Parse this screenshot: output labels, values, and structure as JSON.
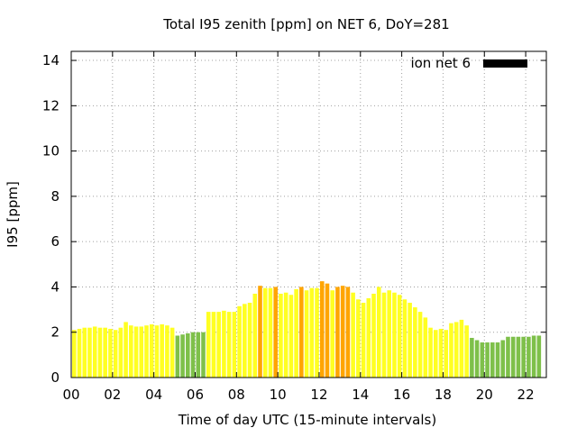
{
  "chart_data": {
    "type": "bar",
    "title": "Total I95 zenith [ppm] on NET 6, DoY=281",
    "xlabel": "Time of day UTC (15-minute intervals)",
    "ylabel": "I95 [ppm]",
    "xlim": [
      0,
      23
    ],
    "ylim": [
      0,
      14.4
    ],
    "x_ticks": [
      0,
      2,
      4,
      6,
      8,
      10,
      12,
      14,
      16,
      18,
      20,
      22
    ],
    "x_tick_labels": [
      "00",
      "02",
      "04",
      "06",
      "08",
      "10",
      "12",
      "14",
      "16",
      "18",
      "20",
      "22"
    ],
    "y_ticks": [
      0,
      2,
      4,
      6,
      8,
      10,
      12,
      14
    ],
    "y_tick_labels": [
      "0",
      "2",
      "4",
      "6",
      "8",
      "10",
      "12",
      "14"
    ],
    "grid": true,
    "legend": {
      "label": "ion net 6",
      "position": "top-right",
      "color": "#000000"
    },
    "colors": {
      "green": "#7ec04a",
      "yellow": "#ffff22",
      "orange": "#ffa500",
      "axis": "#000000",
      "grid": "#a0a0a0"
    },
    "interval_hours": 0.25,
    "series": [
      {
        "name": "ion net 6",
        "start_hour": 0,
        "values": [
          2.1,
          2.15,
          2.2,
          2.2,
          2.25,
          2.2,
          2.2,
          2.15,
          2.1,
          2.2,
          2.45,
          2.3,
          2.25,
          2.25,
          2.3,
          2.35,
          2.3,
          2.35,
          2.3,
          2.2,
          1.85,
          1.9,
          1.95,
          2.0,
          2.0,
          2.0,
          2.9,
          2.9,
          2.9,
          2.95,
          2.9,
          2.9,
          3.15,
          3.25,
          3.3,
          3.7,
          4.05,
          3.95,
          3.95,
          4.0,
          3.7,
          3.75,
          3.65,
          3.9,
          4.0,
          3.85,
          3.95,
          3.95,
          4.25,
          4.15,
          3.85,
          4.0,
          4.05,
          4.0,
          3.75,
          3.45,
          3.3,
          3.5,
          3.7,
          4.0,
          3.75,
          3.85,
          3.75,
          3.65,
          3.45,
          3.3,
          3.1,
          2.9,
          2.65,
          2.2,
          2.1,
          2.15,
          2.1,
          2.4,
          2.45,
          2.55,
          2.3,
          1.75,
          1.65,
          1.55,
          1.55,
          1.55,
          1.55,
          1.65,
          1.8,
          1.8,
          1.8,
          1.8,
          1.8,
          1.85,
          1.85
        ],
        "bar_colors": [
          "yellow",
          "yellow",
          "yellow",
          "yellow",
          "yellow",
          "yellow",
          "yellow",
          "yellow",
          "yellow",
          "yellow",
          "yellow",
          "yellow",
          "yellow",
          "yellow",
          "yellow",
          "yellow",
          "yellow",
          "yellow",
          "yellow",
          "yellow",
          "green",
          "green",
          "green",
          "green",
          "green",
          "green",
          "yellow",
          "yellow",
          "yellow",
          "yellow",
          "yellow",
          "yellow",
          "yellow",
          "yellow",
          "yellow",
          "yellow",
          "orange",
          "yellow",
          "yellow",
          "orange",
          "yellow",
          "yellow",
          "yellow",
          "yellow",
          "orange",
          "yellow",
          "yellow",
          "yellow",
          "orange",
          "orange",
          "yellow",
          "orange",
          "orange",
          "orange",
          "yellow",
          "yellow",
          "yellow",
          "yellow",
          "yellow",
          "yellow",
          "yellow",
          "yellow",
          "yellow",
          "yellow",
          "yellow",
          "yellow",
          "yellow",
          "yellow",
          "yellow",
          "yellow",
          "yellow",
          "yellow",
          "yellow",
          "yellow",
          "yellow",
          "yellow",
          "yellow",
          "green",
          "green",
          "green",
          "green",
          "green",
          "green",
          "green",
          "green",
          "green",
          "green",
          "green",
          "green",
          "green",
          "green"
        ]
      }
    ]
  }
}
